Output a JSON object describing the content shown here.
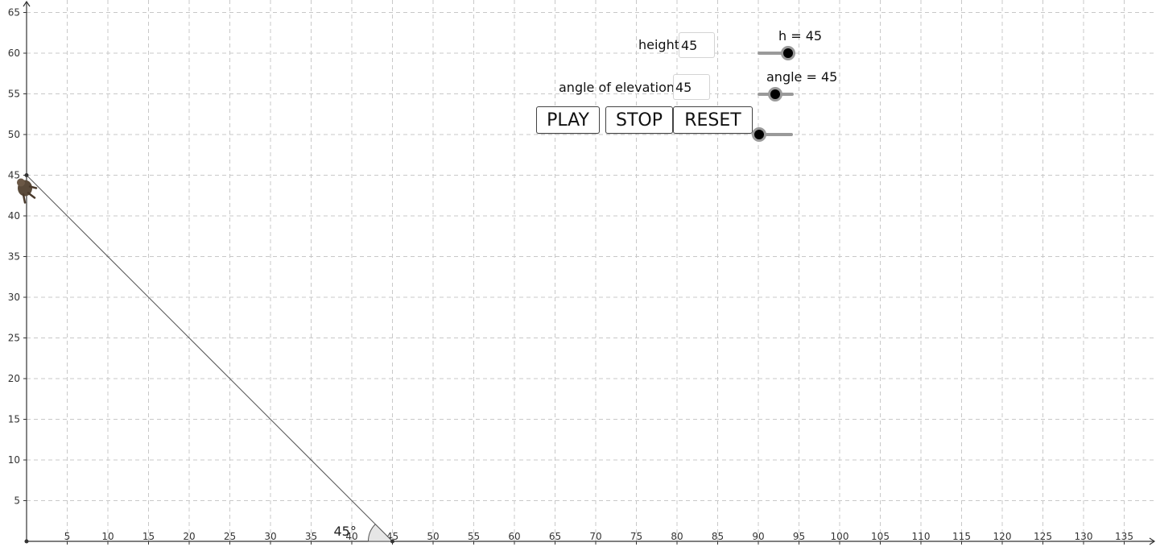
{
  "graph": {
    "x_ticks": [
      5,
      10,
      15,
      20,
      25,
      30,
      35,
      40,
      45,
      50,
      55,
      60,
      65,
      70,
      75,
      80,
      85,
      90,
      95,
      100,
      105,
      110,
      115,
      120,
      125,
      130,
      135
    ],
    "y_ticks": [
      5,
      10,
      15,
      20,
      25,
      30,
      35,
      40,
      45,
      50,
      55,
      60,
      65
    ],
    "origin_label": "",
    "angle_label": "45°",
    "line": {
      "x1": 0,
      "y1": 45,
      "x2": 45,
      "y2": 0
    },
    "line_color": "#555555",
    "grid_color": "#c8c8c8",
    "character_icon": "monkey-icon"
  },
  "controls": {
    "height_label": "height",
    "height_value": "45",
    "angle_label": "angle of elevation",
    "angle_value": "45",
    "play_label": "PLAY",
    "stop_label": "STOP",
    "reset_label": "RESET"
  },
  "sliders": {
    "h_label": "h = 45",
    "angle_label": "angle = 45"
  }
}
